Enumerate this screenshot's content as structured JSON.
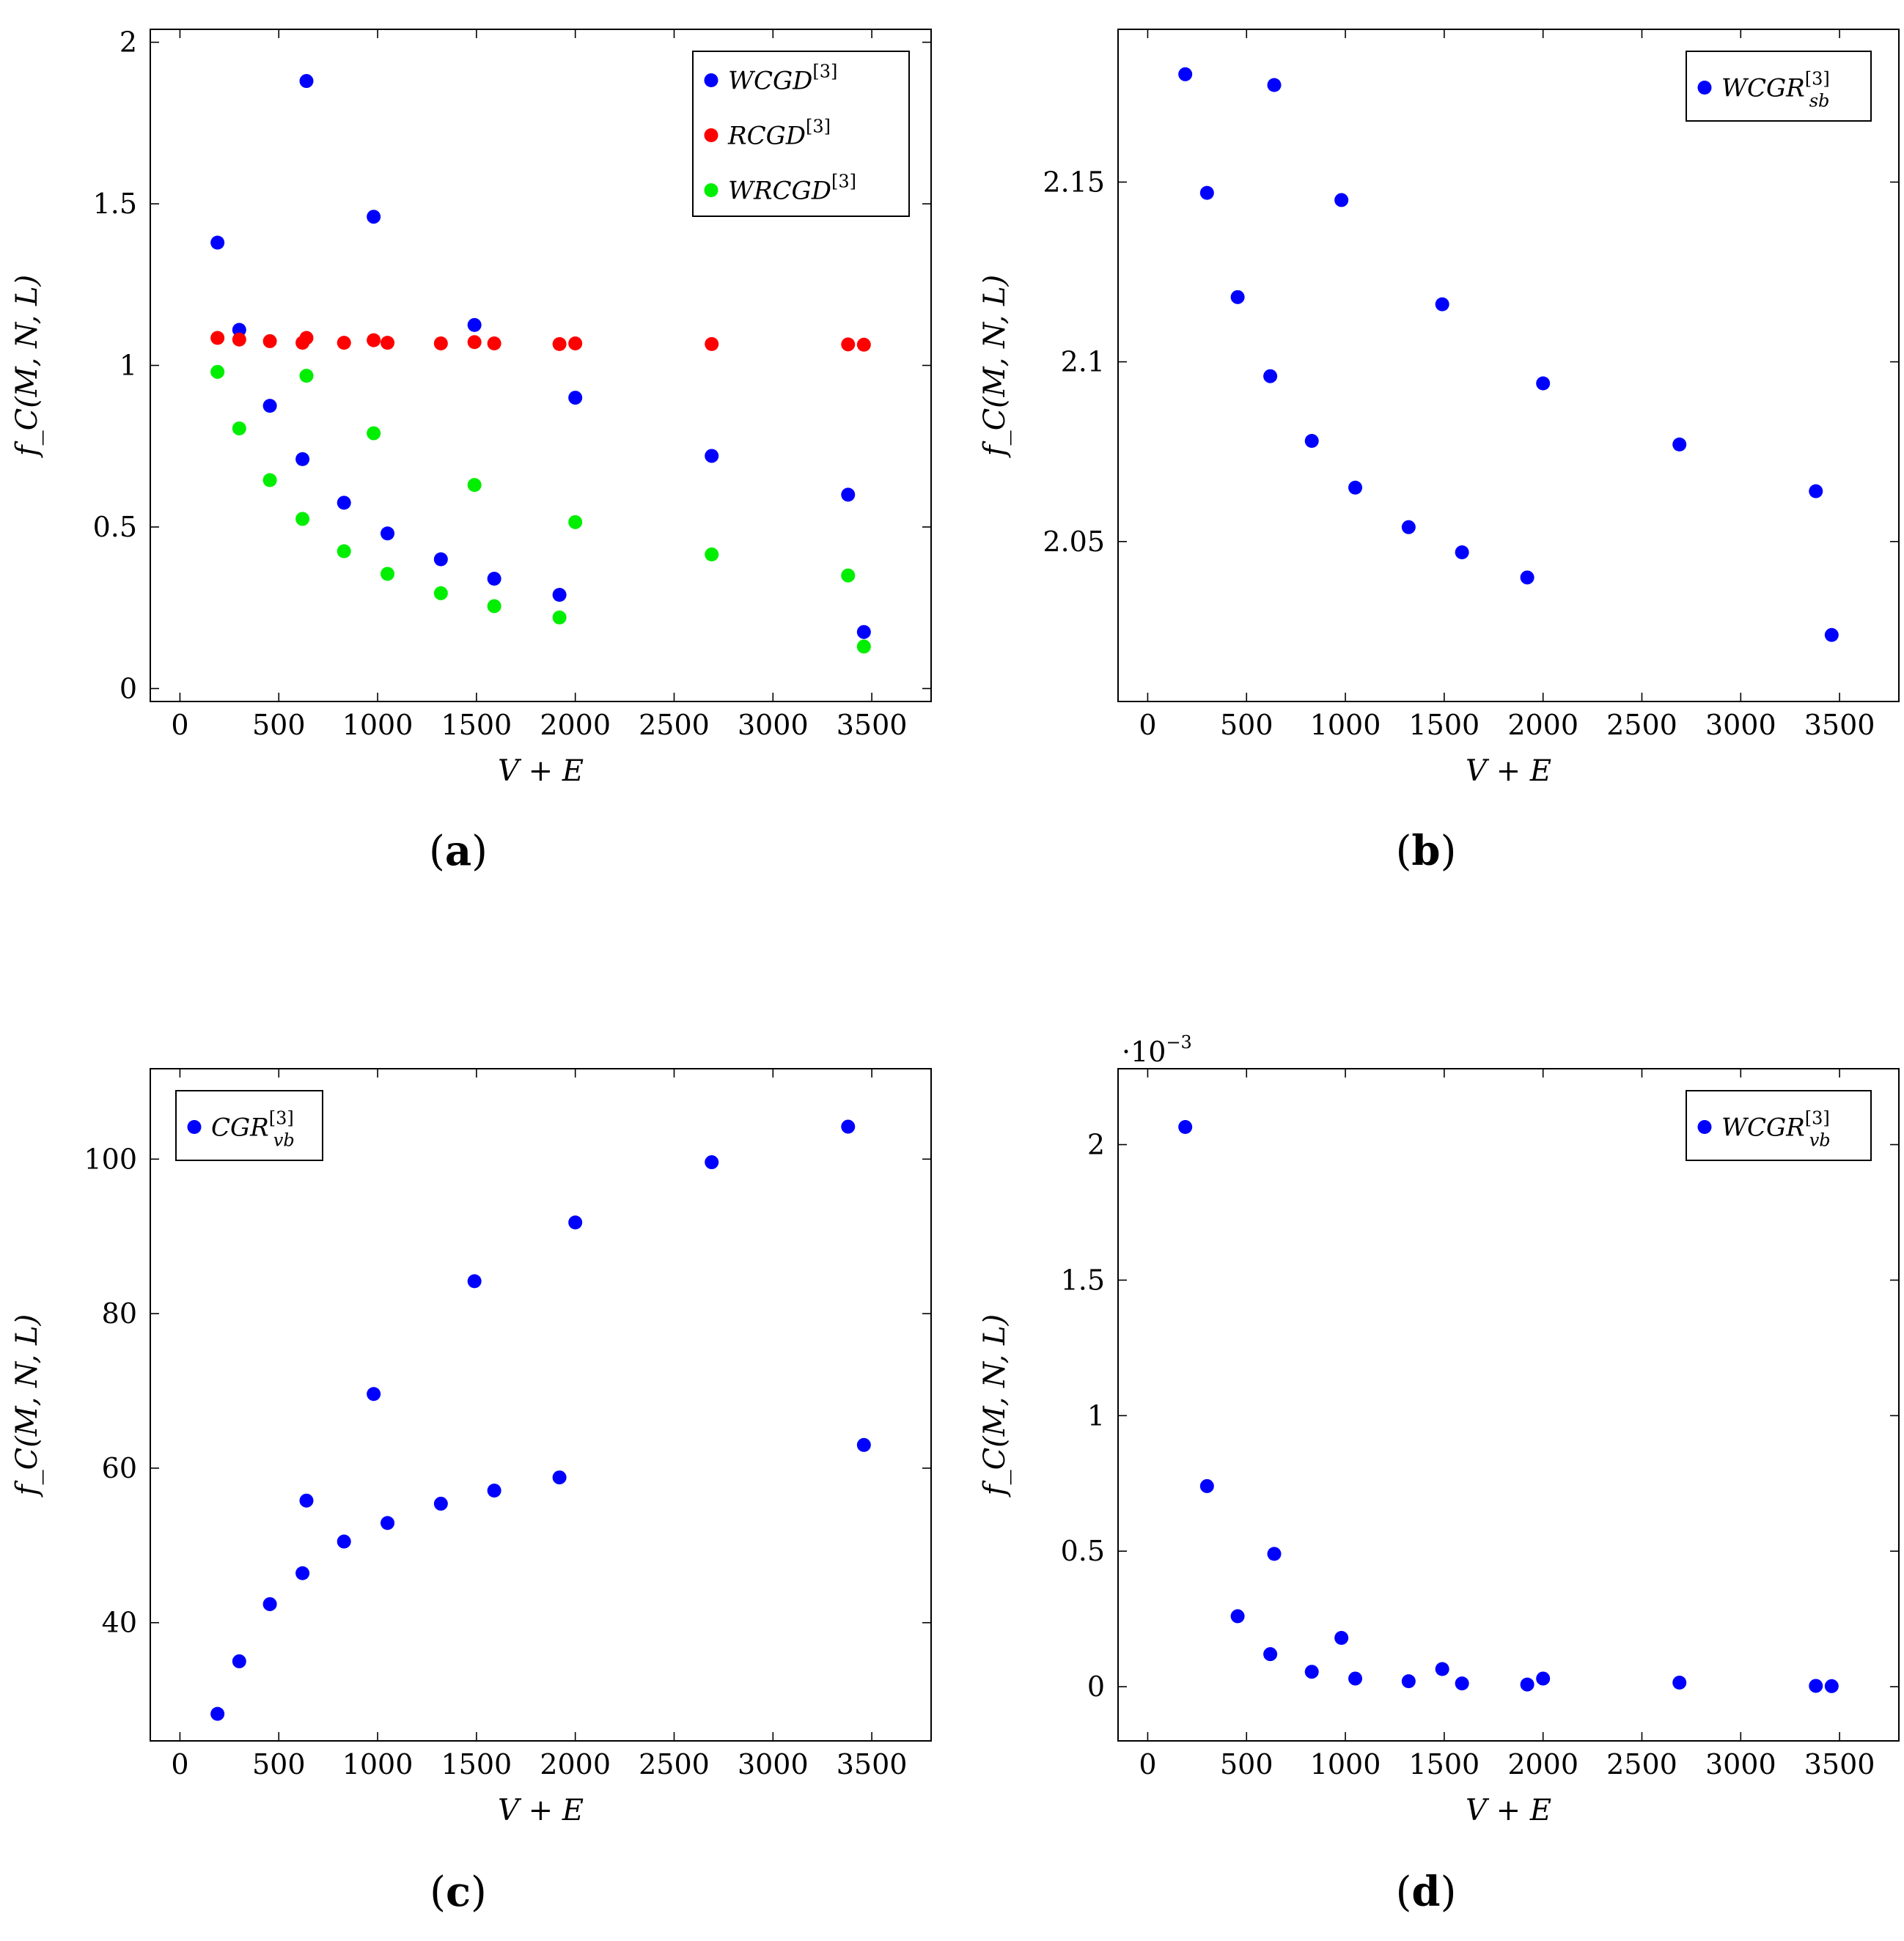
{
  "chart_data": [
    {
      "panel_label": "a",
      "type": "scatter",
      "xlabel": "V + E",
      "ylabel": "f_C(M, N, L)",
      "xlim": [
        -150,
        3800
      ],
      "ylim": [
        -0.04,
        2.04
      ],
      "xticks": [
        0,
        500,
        1000,
        1500,
        2000,
        2500,
        3000,
        3500
      ],
      "yticks": [
        0,
        0.5,
        1,
        1.5,
        2
      ],
      "ytick_labels": [
        "0",
        "0.5",
        "1",
        "1.5",
        "2"
      ],
      "legend_position": "top-right",
      "series": [
        {
          "name": "WCGD",
          "sup": "[3]",
          "color": "#0000ff",
          "points": [
            [
              190,
              1.38
            ],
            [
              300,
              1.11
            ],
            [
              455,
              0.875
            ],
            [
              620,
              0.71
            ],
            [
              640,
              1.88
            ],
            [
              830,
              0.575
            ],
            [
              980,
              1.46
            ],
            [
              1050,
              0.48
            ],
            [
              1320,
              0.4
            ],
            [
              1490,
              1.125
            ],
            [
              1590,
              0.34
            ],
            [
              1920,
              0.29
            ],
            [
              2000,
              0.9
            ],
            [
              2690,
              0.72
            ],
            [
              3380,
              0.6
            ],
            [
              3460,
              0.175
            ]
          ]
        },
        {
          "name": "RCGD",
          "sup": "[3]",
          "color": "#ff0000",
          "points": [
            [
              190,
              1.085
            ],
            [
              300,
              1.08
            ],
            [
              455,
              1.075
            ],
            [
              620,
              1.07
            ],
            [
              640,
              1.085
            ],
            [
              830,
              1.07
            ],
            [
              980,
              1.078
            ],
            [
              1050,
              1.07
            ],
            [
              1320,
              1.068
            ],
            [
              1490,
              1.072
            ],
            [
              1590,
              1.068
            ],
            [
              1920,
              1.066
            ],
            [
              2000,
              1.068
            ],
            [
              2690,
              1.066
            ],
            [
              3380,
              1.065
            ],
            [
              3460,
              1.064
            ]
          ]
        },
        {
          "name": "WRCGD",
          "sup": "[3]",
          "color": "#00ee00",
          "points": [
            [
              190,
              0.98
            ],
            [
              300,
              0.805
            ],
            [
              455,
              0.645
            ],
            [
              620,
              0.525
            ],
            [
              640,
              0.968
            ],
            [
              830,
              0.425
            ],
            [
              980,
              0.79
            ],
            [
              1050,
              0.355
            ],
            [
              1320,
              0.295
            ],
            [
              1490,
              0.63
            ],
            [
              1590,
              0.255
            ],
            [
              1920,
              0.22
            ],
            [
              2000,
              0.515
            ],
            [
              2690,
              0.415
            ],
            [
              3380,
              0.35
            ],
            [
              3460,
              0.13
            ]
          ]
        }
      ]
    },
    {
      "panel_label": "b",
      "type": "scatter",
      "xlabel": "V + E",
      "ylabel": "f_C(M, N, L)",
      "xlim": [
        -150,
        3800
      ],
      "ylim": [
        2.0055,
        2.1925
      ],
      "xticks": [
        0,
        500,
        1000,
        1500,
        2000,
        2500,
        3000,
        3500
      ],
      "yticks": [
        2.05,
        2.1,
        2.15
      ],
      "ytick_labels": [
        "2.05",
        "2.1",
        "2.15"
      ],
      "legend_position": "top-right",
      "series": [
        {
          "name": "WCGR",
          "sup": "[3]",
          "sub": "sb",
          "color": "#0000ff",
          "points": [
            [
              190,
              2.18
            ],
            [
              300,
              2.147
            ],
            [
              455,
              2.118
            ],
            [
              620,
              2.096
            ],
            [
              640,
              2.177
            ],
            [
              830,
              2.078
            ],
            [
              980,
              2.145
            ],
            [
              1050,
              2.065
            ],
            [
              1320,
              2.054
            ],
            [
              1490,
              2.116
            ],
            [
              1590,
              2.047
            ],
            [
              1920,
              2.04
            ],
            [
              2000,
              2.094
            ],
            [
              2690,
              2.077
            ],
            [
              3380,
              2.064
            ],
            [
              3460,
              2.024
            ]
          ]
        }
      ]
    },
    {
      "panel_label": "c",
      "type": "scatter",
      "xlabel": "V + E",
      "ylabel": "f_C(M, N, L)",
      "xlim": [
        -150,
        3800
      ],
      "ylim": [
        24.7,
        111.7
      ],
      "xticks": [
        0,
        500,
        1000,
        1500,
        2000,
        2500,
        3000,
        3500
      ],
      "yticks": [
        40,
        60,
        80,
        100
      ],
      "ytick_labels": [
        "40",
        "60",
        "80",
        "100"
      ],
      "legend_position": "top-left",
      "series": [
        {
          "name": "CGR",
          "sup": "[3]",
          "sub": "vb",
          "color": "#0000ff",
          "points": [
            [
              190,
              28.2
            ],
            [
              300,
              35.0
            ],
            [
              455,
              42.4
            ],
            [
              620,
              46.4
            ],
            [
              640,
              55.8
            ],
            [
              830,
              50.5
            ],
            [
              980,
              69.6
            ],
            [
              1050,
              52.9
            ],
            [
              1320,
              55.4
            ],
            [
              1490,
              84.2
            ],
            [
              1590,
              57.1
            ],
            [
              1920,
              58.8
            ],
            [
              2000,
              91.8
            ],
            [
              2690,
              99.6
            ],
            [
              3380,
              104.2
            ],
            [
              3460,
              63.0
            ]
          ]
        }
      ]
    },
    {
      "panel_label": "d",
      "type": "scatter",
      "xlabel": "V + E",
      "ylabel": "f_C(M, N, L)",
      "axis_multiplier": "·10",
      "axis_multiplier_exp": "−3",
      "xlim": [
        -150,
        3800
      ],
      "ylim": [
        -0.2,
        2.28
      ],
      "xticks": [
        0,
        500,
        1000,
        1500,
        2000,
        2500,
        3000,
        3500
      ],
      "yticks": [
        0,
        0.5,
        1,
        1.5,
        2
      ],
      "ytick_labels": [
        "0",
        "0.5",
        "1",
        "1.5",
        "2"
      ],
      "legend_position": "top-right",
      "series": [
        {
          "name": "WCGR",
          "sup": "[3]",
          "sub": "vb",
          "color": "#0000ff",
          "points": [
            [
              190,
              2.065
            ],
            [
              300,
              0.74
            ],
            [
              455,
              0.26
            ],
            [
              620,
              0.12
            ],
            [
              640,
              0.49
            ],
            [
              830,
              0.055
            ],
            [
              980,
              0.18
            ],
            [
              1050,
              0.03
            ],
            [
              1320,
              0.02
            ],
            [
              1490,
              0.065
            ],
            [
              1590,
              0.012
            ],
            [
              1920,
              0.008
            ],
            [
              2000,
              0.03
            ],
            [
              2690,
              0.015
            ],
            [
              3380,
              0.003
            ],
            [
              3460,
              0.002
            ]
          ]
        }
      ]
    }
  ]
}
